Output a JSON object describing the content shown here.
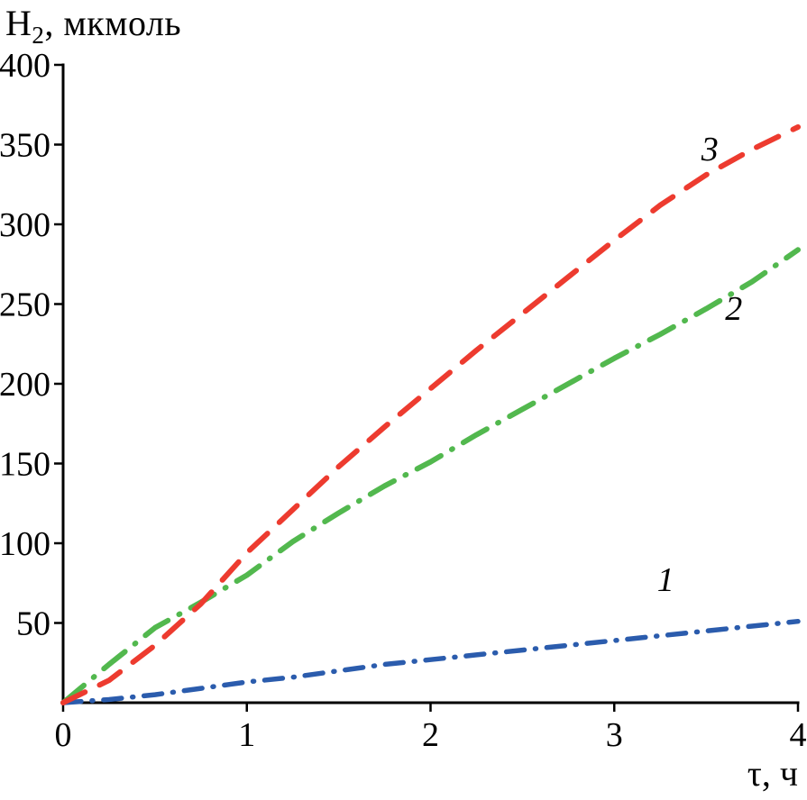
{
  "chart_data": {
    "type": "line",
    "title": "",
    "ylabel_parts": {
      "base": "H",
      "sub": "2",
      "rest": ", мкмоль"
    },
    "xlabel": "τ, ч",
    "xlim": [
      0,
      4
    ],
    "ylim": [
      0,
      400
    ],
    "x_ticks": [
      "0",
      "1",
      "2",
      "3",
      "4"
    ],
    "x_tick_values": [
      0,
      1,
      2,
      3,
      4
    ],
    "y_ticks": [
      "50",
      "100",
      "150",
      "200",
      "250",
      "300",
      "350",
      "400"
    ],
    "y_tick_values": [
      50,
      100,
      150,
      200,
      250,
      300,
      350,
      400
    ],
    "grid": false,
    "legend_position": "none",
    "axis_color": "#000000",
    "series": [
      {
        "name": "1",
        "style": "dash-dot",
        "color": "#2b5cad",
        "dash": "20 12 1 12",
        "width": 5.5,
        "x": [
          0,
          0.25,
          0.5,
          0.75,
          1,
          1.25,
          1.5,
          1.75,
          2,
          2.25,
          2.5,
          2.75,
          3,
          3.25,
          3.5,
          3.75,
          4
        ],
        "y": [
          0,
          2,
          5,
          9,
          13,
          16,
          20,
          24,
          27,
          30,
          33,
          36,
          39,
          42,
          45,
          48,
          51
        ],
        "label": {
          "text": "1",
          "x": 3.28,
          "y": 70
        }
      },
      {
        "name": "2",
        "style": "dash-dot",
        "color": "#52b84e",
        "dash": "30 14 1 14",
        "width": 6,
        "x": [
          0,
          0.25,
          0.5,
          0.75,
          1,
          1.25,
          1.5,
          1.75,
          2,
          2.25,
          2.5,
          2.75,
          3,
          3.25,
          3.5,
          3.75,
          4
        ],
        "y": [
          0,
          24,
          47,
          63,
          80,
          101,
          119,
          136,
          151,
          168,
          184,
          200,
          216,
          231,
          247,
          264,
          284
        ],
        "label": {
          "text": "2",
          "x": 3.65,
          "y": 240
        }
      },
      {
        "name": "3",
        "style": "dashed",
        "color": "#ed3b2f",
        "dash": "27 18",
        "width": 6,
        "x": [
          0,
          0.25,
          0.5,
          0.75,
          1,
          1.25,
          1.5,
          1.75,
          2,
          2.25,
          2.5,
          2.75,
          3,
          3.25,
          3.5,
          3.75,
          4
        ],
        "y": [
          0,
          14,
          36,
          62,
          94,
          121,
          148,
          173,
          197,
          221,
          244,
          267,
          290,
          312,
          331,
          347,
          361
        ],
        "label": {
          "text": "3",
          "x": 3.52,
          "y": 340
        }
      }
    ]
  }
}
